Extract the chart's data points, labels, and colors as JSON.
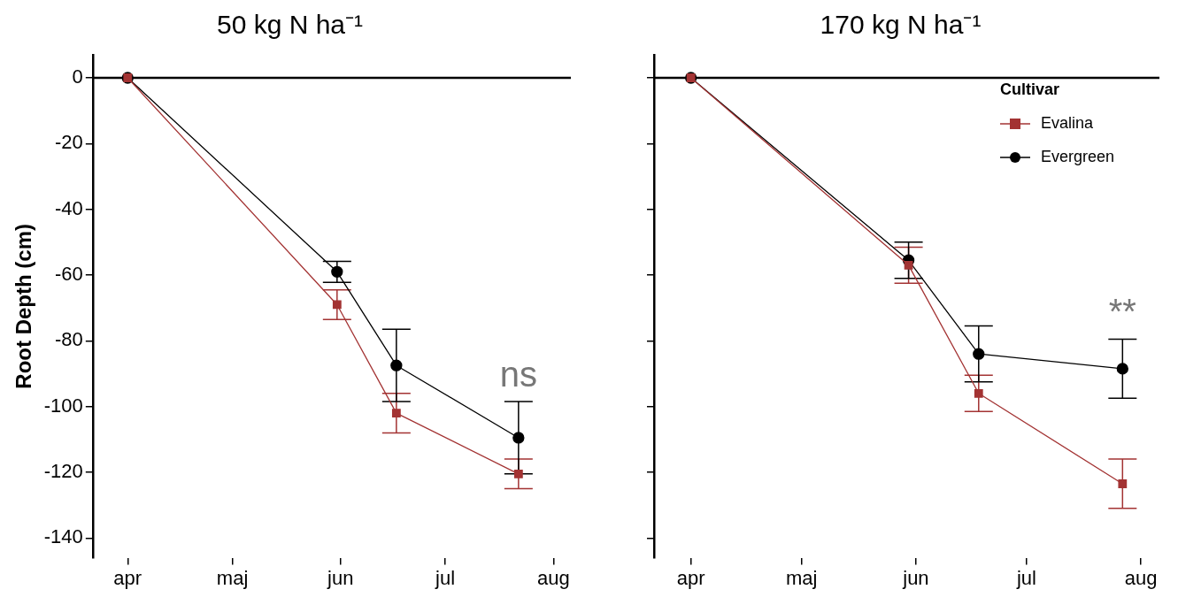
{
  "chart_data": [
    {
      "type": "line",
      "title": "50 kg N ha⁻¹",
      "ylabel": "Root Depth (cm)",
      "xlim": [
        "--03-22",
        "--08-06"
      ],
      "xticks": [
        {
          "value": "--04-01",
          "label": "apr"
        },
        {
          "value": "--05-01",
          "label": "maj"
        },
        {
          "value": "--06-01",
          "label": "jun"
        },
        {
          "value": "--07-01",
          "label": "jul"
        },
        {
          "value": "--08-01",
          "label": "aug"
        }
      ],
      "ylim": [
        -146,
        7
      ],
      "yticks": [
        0,
        -20,
        -40,
        -60,
        -80,
        -100,
        -120,
        -140
      ],
      "grid": false,
      "legend": false,
      "ref_lines": [
        {
          "axis": "y",
          "value": 0,
          "color": "#000000"
        }
      ],
      "annotations": [
        "ns"
      ],
      "x": [
        "--04-01",
        "--05-31",
        "--06-17",
        "--07-22"
      ],
      "series": [
        {
          "color": "#a33333",
          "marker": "square",
          "values": [
            0,
            -69,
            -102,
            -120.5
          ],
          "errors": [
            null,
            4.5,
            6,
            4.5
          ]
        },
        {
          "color": "#000000",
          "marker": "circle",
          "values": [
            0,
            -59,
            -87.5,
            -109.5
          ],
          "errors": [
            null,
            3.2,
            11,
            11
          ]
        }
      ]
    },
    {
      "type": "line",
      "title": "170 kg N ha⁻¹",
      "legend_title": "Cultivar",
      "tick_labels": "x",
      "xlim": [
        "--03-22",
        "--08-06"
      ],
      "xticks": [
        {
          "value": "--04-01",
          "label": "apr"
        },
        {
          "value": "--05-01",
          "label": "maj"
        },
        {
          "value": "--06-01",
          "label": "jun"
        },
        {
          "value": "--07-01",
          "label": "jul"
        },
        {
          "value": "--08-01",
          "label": "aug"
        }
      ],
      "ylim": [
        -146,
        7
      ],
      "yticks": [
        0,
        -20,
        -40,
        -60,
        -80,
        -100,
        -120,
        -140
      ],
      "grid": false,
      "legend": "top right",
      "ref_lines": [
        {
          "axis": "y",
          "value": 0,
          "color": "#000000"
        }
      ],
      "annotations": [
        "**"
      ],
      "x": [
        "--04-01",
        "--05-30",
        "--06-18",
        "--07-27"
      ],
      "series": [
        {
          "name": "Evalina",
          "color": "#a33333",
          "marker": "square",
          "values": [
            0,
            -57,
            -96,
            -123.5
          ],
          "errors": [
            null,
            5.5,
            5.5,
            7.5
          ]
        },
        {
          "name": "Evergreen",
          "color": "#000000",
          "marker": "circle",
          "values": [
            0,
            -55.5,
            -84,
            -88.5
          ],
          "errors": [
            null,
            5.5,
            8.5,
            9
          ]
        }
      ]
    }
  ]
}
